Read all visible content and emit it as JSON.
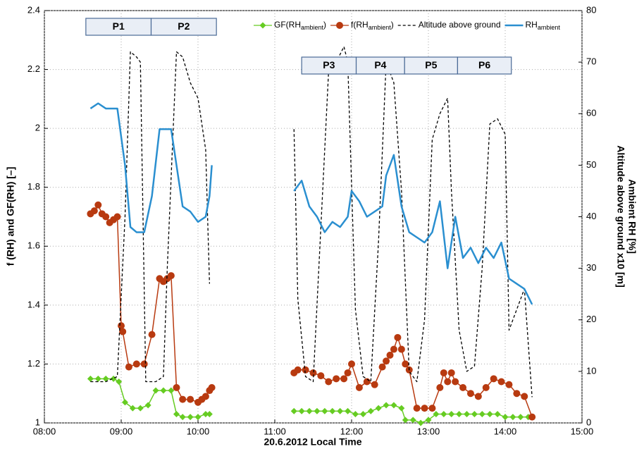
{
  "chart_data": {
    "type": "line",
    "xlabel": "20.6.2012  Local Time",
    "ylabel": "f (RH) and GF(RH) [–]",
    "y2label": [
      "Altitude above ground x10 [m]",
      "Ambient RH [%]"
    ],
    "xlim": [
      8,
      15
    ],
    "xticks": [
      {
        "value": 8,
        "label": "08:00"
      },
      {
        "value": 9,
        "label": "09:00"
      },
      {
        "value": 10,
        "label": "10:00"
      },
      {
        "value": 11,
        "label": "11:00"
      },
      {
        "value": 12,
        "label": "12:00"
      },
      {
        "value": 13,
        "label": "13:00"
      },
      {
        "value": 14,
        "label": "14:00"
      },
      {
        "value": 15,
        "label": "15:00"
      }
    ],
    "ylim": [
      1,
      2.4
    ],
    "yticks": [
      1,
      1.2,
      1.4,
      1.6,
      1.8,
      2,
      2.2,
      2.4
    ],
    "y2lim": [
      0,
      80
    ],
    "y2ticks": [
      0,
      10,
      20,
      30,
      40,
      50,
      60,
      70,
      80
    ],
    "grid": true,
    "legend": "top",
    "periods": [
      {
        "label": "P1",
        "start": 8.54,
        "end": 9.39
      },
      {
        "label": "P2",
        "start": 9.39,
        "end": 10.24
      },
      {
        "label": "P3",
        "start": 11.35,
        "end": 12.06
      },
      {
        "label": "P4",
        "start": 12.06,
        "end": 12.69
      },
      {
        "label": "P5",
        "start": 12.69,
        "end": 13.38
      },
      {
        "label": "P6",
        "start": 13.38,
        "end": 14.08
      }
    ],
    "series": [
      {
        "name": "GF(RHambient)",
        "name_subscript": "ambient",
        "color": "#66cc22",
        "marker": "diamond",
        "dashed": false,
        "x": [
          8.6,
          8.7,
          8.8,
          8.9,
          8.97,
          9.05,
          9.15,
          9.25,
          9.35,
          9.45,
          9.55,
          9.65,
          9.72,
          9.8,
          9.9,
          10.0,
          10.1,
          10.15,
          null,
          11.25,
          11.35,
          11.45,
          11.55,
          11.65,
          11.75,
          11.85,
          11.95,
          12.05,
          12.15,
          12.25,
          12.35,
          12.45,
          12.55,
          12.65,
          12.7,
          12.8,
          12.9,
          13.0,
          13.1,
          13.2,
          13.3,
          13.4,
          13.5,
          13.6,
          13.7,
          13.8,
          13.9,
          14.0,
          14.1,
          14.2,
          14.3
        ],
        "values": [
          1.15,
          1.15,
          1.15,
          1.15,
          1.14,
          1.07,
          1.05,
          1.05,
          1.06,
          1.11,
          1.11,
          1.11,
          1.03,
          1.02,
          1.02,
          1.02,
          1.03,
          1.03,
          null,
          1.04,
          1.04,
          1.04,
          1.04,
          1.04,
          1.04,
          1.04,
          1.04,
          1.03,
          1.03,
          1.04,
          1.05,
          1.06,
          1.06,
          1.05,
          1.01,
          1.01,
          1.0,
          1.01,
          1.03,
          1.03,
          1.03,
          1.03,
          1.03,
          1.03,
          1.03,
          1.03,
          1.03,
          1.02,
          1.02,
          1.02,
          1.02
        ]
      },
      {
        "name": "f(RHambient)",
        "name_subscript": "ambient",
        "color": "#b83a10",
        "marker": "circle",
        "dashed": false,
        "x": [
          8.6,
          8.65,
          8.7,
          8.75,
          8.8,
          8.85,
          8.9,
          8.95,
          9.0,
          9.02,
          9.1,
          9.2,
          9.3,
          9.4,
          9.5,
          9.55,
          9.6,
          9.65,
          9.72,
          9.8,
          9.9,
          10.0,
          10.05,
          10.1,
          10.15,
          10.18,
          null,
          11.25,
          11.3,
          11.4,
          11.5,
          11.6,
          11.7,
          11.8,
          11.9,
          11.95,
          12.0,
          12.1,
          12.2,
          12.3,
          12.4,
          12.45,
          12.5,
          12.55,
          12.6,
          12.65,
          12.7,
          12.75,
          12.85,
          12.95,
          13.05,
          13.15,
          13.2,
          13.25,
          13.3,
          13.35,
          13.45,
          13.55,
          13.65,
          13.75,
          13.85,
          13.95,
          14.05,
          14.15,
          14.25,
          14.35
        ],
        "values": [
          1.71,
          1.72,
          1.74,
          1.71,
          1.7,
          1.68,
          1.69,
          1.7,
          1.33,
          1.31,
          1.19,
          1.2,
          1.2,
          1.3,
          1.49,
          1.48,
          1.49,
          1.5,
          1.12,
          1.08,
          1.08,
          1.07,
          1.08,
          1.09,
          1.11,
          1.12,
          null,
          1.17,
          1.18,
          1.18,
          1.17,
          1.16,
          1.14,
          1.15,
          1.15,
          1.17,
          1.2,
          1.12,
          1.14,
          1.13,
          1.19,
          1.21,
          1.23,
          1.25,
          1.29,
          1.25,
          1.2,
          1.18,
          1.05,
          1.05,
          1.05,
          1.12,
          1.17,
          1.14,
          1.17,
          1.14,
          1.12,
          1.1,
          1.09,
          1.12,
          1.15,
          1.14,
          1.13,
          1.1,
          1.09,
          1.02
        ]
      },
      {
        "name": "Altitude above ground",
        "color": "#000000",
        "marker": "none",
        "dashed": true,
        "axis": "y2",
        "x": [
          8.6,
          8.8,
          8.95,
          9.05,
          9.12,
          9.2,
          9.25,
          9.32,
          9.45,
          9.55,
          9.6,
          9.72,
          9.8,
          9.9,
          10.0,
          10.1,
          10.15,
          null,
          11.25,
          11.3,
          11.4,
          11.5,
          11.6,
          11.7,
          11.8,
          11.9,
          11.95,
          12.05,
          12.15,
          12.25,
          12.35,
          12.45,
          12.55,
          12.65,
          12.75,
          12.85,
          12.95,
          13.05,
          13.15,
          13.25,
          13.3,
          13.4,
          13.5,
          13.6,
          13.7,
          13.8,
          13.9,
          14.0,
          14.05,
          14.15,
          14.25,
          14.35
        ],
        "values": [
          8,
          8,
          9,
          40,
          72,
          71,
          70,
          8,
          8,
          9,
          30,
          72,
          71,
          66,
          63,
          53,
          27,
          null,
          57,
          24,
          9,
          8,
          38,
          68,
          70,
          73,
          70,
          22,
          9,
          8,
          35,
          70,
          66,
          45,
          10,
          8,
          20,
          55,
          60,
          63,
          45,
          18,
          10,
          11,
          30,
          58,
          59,
          56,
          18,
          22,
          26,
          5
        ]
      },
      {
        "name": "RHambient",
        "name_subscript": "ambient",
        "color": "#2a8fd0",
        "marker": "none",
        "dashed": false,
        "axis": "y2",
        "x": [
          8.6,
          8.7,
          8.8,
          8.9,
          8.95,
          9.05,
          9.12,
          9.2,
          9.3,
          9.4,
          9.5,
          9.6,
          9.65,
          9.72,
          9.8,
          9.9,
          10.0,
          10.1,
          10.15,
          10.18,
          null,
          11.25,
          11.35,
          11.45,
          11.55,
          11.65,
          11.75,
          11.85,
          11.95,
          12.0,
          12.1,
          12.2,
          12.3,
          12.4,
          12.45,
          12.55,
          12.65,
          12.75,
          12.85,
          12.95,
          13.05,
          13.15,
          13.25,
          13.35,
          13.45,
          13.55,
          13.65,
          13.75,
          13.85,
          13.95,
          14.05,
          14.15,
          14.25,
          14.35
        ],
        "values": [
          61,
          62,
          61,
          61,
          61,
          50,
          38,
          37,
          37,
          44,
          57,
          57,
          57,
          50,
          42,
          41,
          39,
          40,
          44,
          50,
          null,
          45,
          47,
          42,
          40,
          37,
          39,
          38,
          40,
          45,
          43,
          40,
          41,
          42,
          48,
          52,
          42,
          37,
          36,
          35,
          37,
          43,
          30,
          40,
          32,
          34,
          31,
          34,
          32,
          35,
          28,
          27,
          26,
          23
        ]
      }
    ]
  }
}
